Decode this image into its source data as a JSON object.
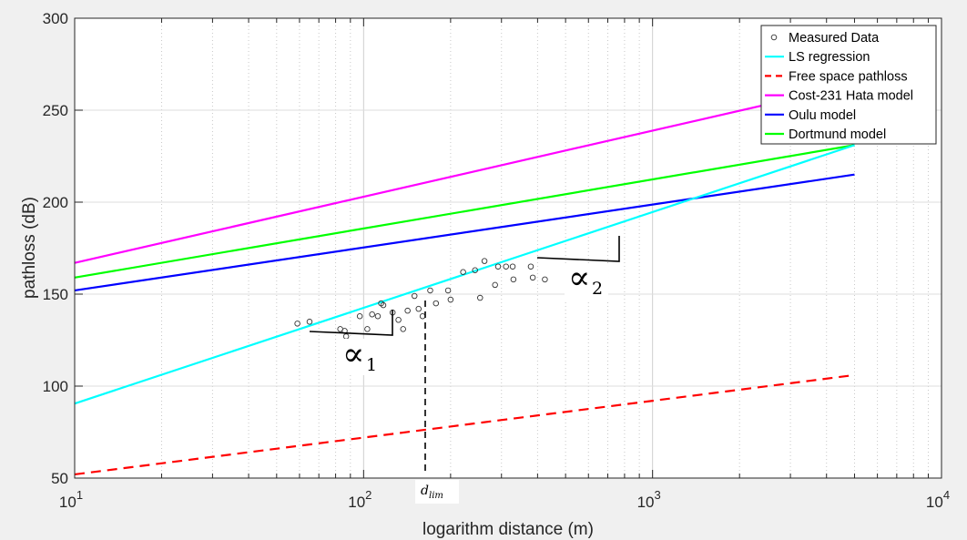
{
  "chart_data": {
    "type": "line",
    "xlabel": "logarithm distance (m)",
    "ylabel": "pathloss (dB)",
    "xscale": "log",
    "xlim": [
      10,
      10000
    ],
    "ylim": [
      50,
      300
    ],
    "x_ticks": [
      {
        "base": "10",
        "exp": "1"
      },
      {
        "base": "10",
        "exp": "2"
      },
      {
        "base": "10",
        "exp": "3"
      },
      {
        "base": "10",
        "exp": "4"
      }
    ],
    "y_ticks": [
      "50",
      "100",
      "150",
      "200",
      "250",
      "300"
    ],
    "grid": true,
    "legend_position": "top-right",
    "series": [
      {
        "name": "Measured Data",
        "kind": "scatter",
        "color": "#000000",
        "points": [
          [
            59,
            134
          ],
          [
            65,
            135
          ],
          [
            83,
            131
          ],
          [
            86,
            130
          ],
          [
            87,
            127
          ],
          [
            97,
            138
          ],
          [
            103,
            131
          ],
          [
            107,
            139
          ],
          [
            112,
            138
          ],
          [
            115,
            145
          ],
          [
            117,
            144
          ],
          [
            126,
            140
          ],
          [
            132,
            136
          ],
          [
            137,
            131
          ],
          [
            142,
            141
          ],
          [
            150,
            149
          ],
          [
            155,
            142
          ],
          [
            160,
            138
          ],
          [
            170,
            152
          ],
          [
            178,
            145
          ],
          [
            196,
            152
          ],
          [
            200,
            147
          ],
          [
            221,
            162
          ],
          [
            243,
            163
          ],
          [
            253,
            148
          ],
          [
            262,
            168
          ],
          [
            285,
            155
          ],
          [
            292,
            165
          ],
          [
            311,
            165
          ],
          [
            328,
            165
          ],
          [
            330,
            158
          ],
          [
            379,
            165
          ],
          [
            385,
            159
          ],
          [
            424,
            158
          ]
        ]
      },
      {
        "name": "LS regression",
        "kind": "line",
        "color": "#00ffff",
        "x": [
          10,
          5000
        ],
        "y": [
          90.5,
          231
        ]
      },
      {
        "name": "Free space pathloss",
        "kind": "dashed",
        "color": "#ff0000",
        "x": [
          10,
          5000
        ],
        "y": [
          52,
          106
        ]
      },
      {
        "name": "Cost-231 Hata model",
        "kind": "line",
        "color": "#ff00ff",
        "x": [
          10,
          5000
        ],
        "y": [
          167,
          264
        ]
      },
      {
        "name": "Oulu model",
        "kind": "line",
        "color": "#0000ff",
        "x": [
          10,
          5000
        ],
        "y": [
          152,
          215
        ]
      },
      {
        "name": "Dortmund model",
        "kind": "line",
        "color": "#00ff00",
        "x": [
          10,
          5000
        ],
        "y": [
          159,
          231
        ]
      }
    ],
    "annotations": {
      "alpha1": {
        "symbol": "∝",
        "sub": "1"
      },
      "alpha2": {
        "symbol": "∝",
        "sub": "2"
      },
      "dlim": {
        "base": "d",
        "sub": "lim"
      }
    }
  }
}
